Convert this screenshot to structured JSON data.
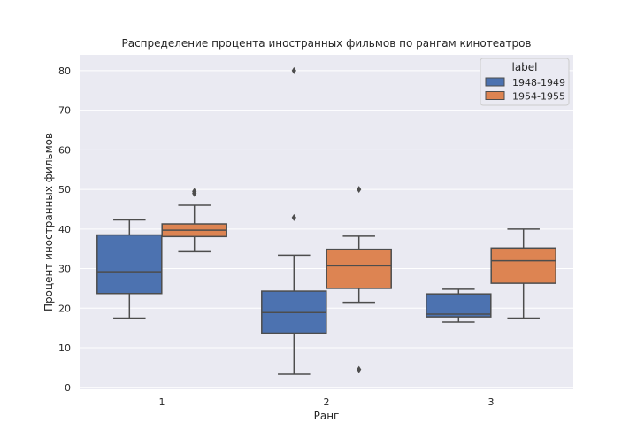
{
  "chart_data": {
    "type": "boxplot",
    "title": "Распределение процента иностранных фильмов по рангам кинотеатров",
    "xlabel": "Ранг",
    "ylabel": "Процент иностранных фильмов",
    "categories": [
      "1",
      "2",
      "3"
    ],
    "ylim": [
      -0.5,
      84
    ],
    "yticks": [
      0,
      10,
      20,
      30,
      40,
      50,
      60,
      70,
      80
    ],
    "grid": true,
    "legend": {
      "title": "label",
      "placement": "top-right"
    },
    "series": [
      {
        "name": "1948-1949",
        "color": "#4c72b0",
        "boxes": [
          {
            "whisker_low": 17.5,
            "q1": 23.7,
            "median": 29.2,
            "q3": 38.5,
            "whisker_high": 42.3,
            "outliers": []
          },
          {
            "whisker_low": 3.3,
            "q1": 13.7,
            "median": 18.9,
            "q3": 24.3,
            "whisker_high": 33.4,
            "outliers": [
              42.9,
              80.0
            ]
          },
          {
            "whisker_low": 16.5,
            "q1": 17.8,
            "median": 18.5,
            "q3": 23.6,
            "whisker_high": 24.8,
            "outliers": []
          }
        ]
      },
      {
        "name": "1954-1955",
        "color": "#dd8452",
        "boxes": [
          {
            "whisker_low": 34.3,
            "q1": 38.1,
            "median": 39.7,
            "q3": 41.3,
            "whisker_high": 46.0,
            "outliers": [
              49.0,
              49.5
            ]
          },
          {
            "whisker_low": 21.5,
            "q1": 25.0,
            "median": 30.7,
            "q3": 34.9,
            "whisker_high": 38.2,
            "outliers": [
              50.0,
              4.5
            ]
          },
          {
            "whisker_low": 17.5,
            "q1": 26.3,
            "median": 32.0,
            "q3": 35.2,
            "whisker_high": 40.0,
            "outliers": []
          }
        ]
      }
    ]
  }
}
